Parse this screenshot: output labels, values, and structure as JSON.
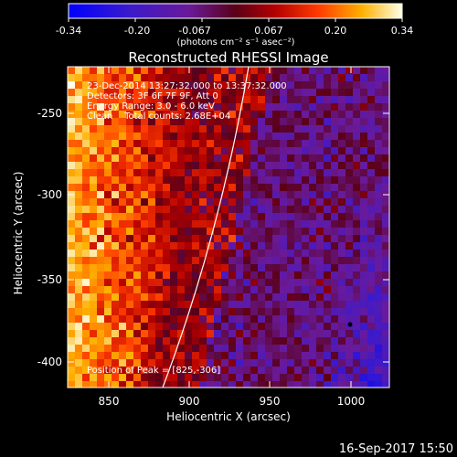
{
  "colorbar": {
    "tick_labels": [
      "-0.34",
      "-0.20",
      "-0.067",
      "0.067",
      "0.20",
      "0.34"
    ],
    "units_label": "(photons cm⁻² s⁻¹ asec⁻²)",
    "range": [
      -0.34,
      0.34
    ]
  },
  "plot": {
    "title": "Reconstructed RHESSI Image",
    "xlabel": "Heliocentric X (arcsec)",
    "ylabel": "Heliocentric Y (arcsec)",
    "x_ticks": [
      "850",
      "900",
      "950",
      "1000"
    ],
    "y_ticks": [
      "-250",
      "-300",
      "-350",
      "-400"
    ],
    "xlim": [
      825,
      1018
    ],
    "ylim": [
      -418,
      -228
    ],
    "annotations": {
      "line1": "23-Dec-2014 13:27:32.000 to 13:37:32.000",
      "line2": "Detectors: 3F 6F 7F 9F, Att 0",
      "line3": "Energy Range: 3.0 - 6.0 keV",
      "line4": "Clean    Total counts: 2.68E+04",
      "peak": "Position of Peak = [825,-306]"
    }
  },
  "footer": {
    "timestamp": "16-Sep-2017 15:50"
  },
  "colors": {
    "background": "#000000",
    "foreground": "#ffffff"
  }
}
